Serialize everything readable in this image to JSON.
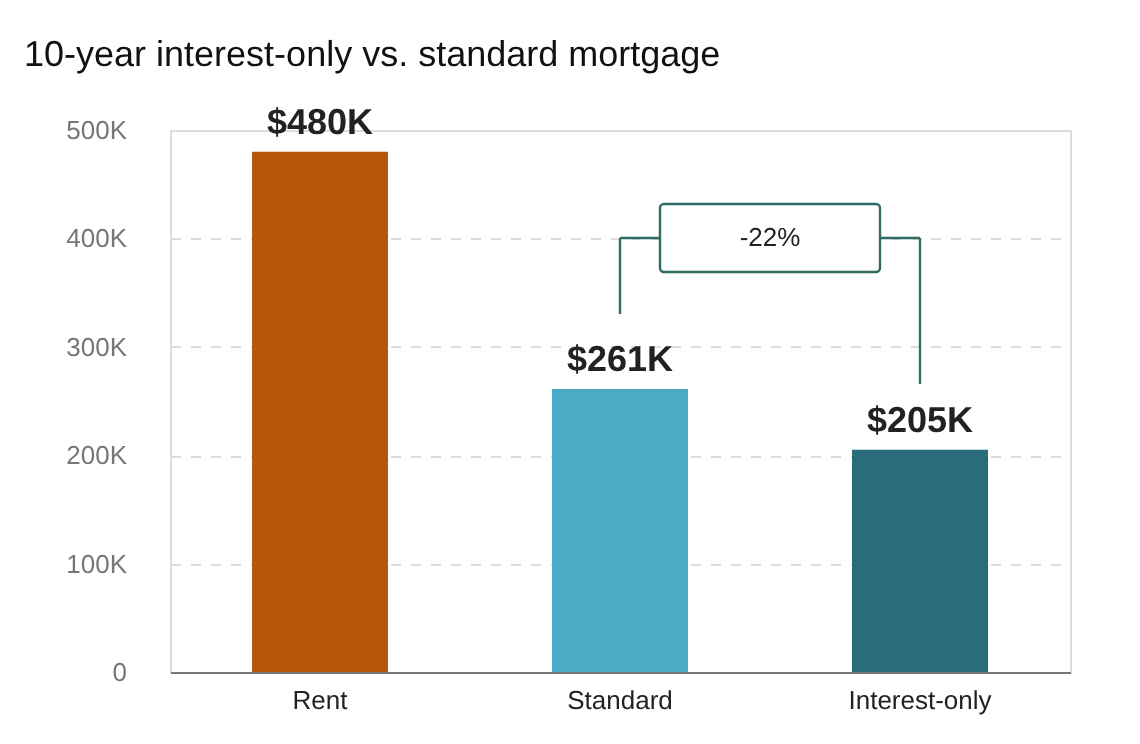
{
  "chart_data": {
    "type": "bar",
    "title": "10-year interest-only vs. standard mortgage",
    "categories": [
      "Rent",
      "Standard",
      "Interest-only"
    ],
    "values": [
      480000,
      261000,
      205000
    ],
    "colors": [
      "#b5560a",
      "#4baac6",
      "#2a6b7c"
    ],
    "value_labels": [
      "$480K",
      "$261K",
      "$205K"
    ],
    "ylim": [
      0,
      500000
    ],
    "yticks": [
      0,
      {
        "value": 100000,
        "label": "100K"
      },
      {
        "value": 200000,
        "label": "200K"
      },
      {
        "value": 300000,
        "label": "300K"
      },
      {
        "value": 400000,
        "label": "400K"
      },
      {
        "value": 500000,
        "label": "500K"
      }
    ],
    "grid": "y",
    "annotations": [
      "-22%"
    ]
  }
}
